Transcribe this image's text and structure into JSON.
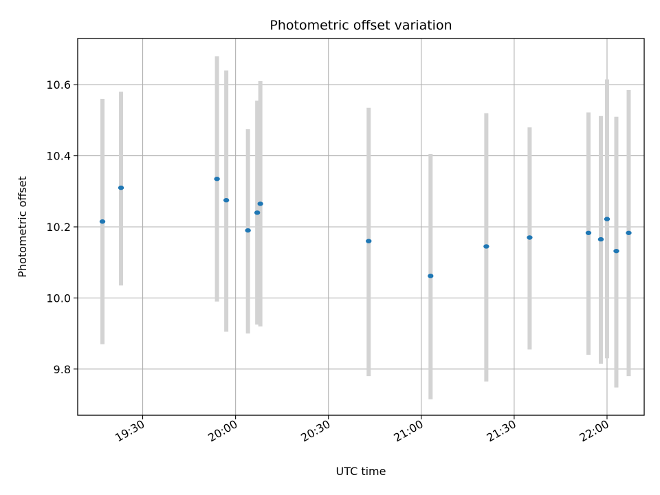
{
  "chart_data": {
    "type": "scatter",
    "title": "Photometric offset variation",
    "xlabel": "UTC time",
    "ylabel": "Photometric offset",
    "x_axis": "time",
    "xlim": [
      "19:09",
      "22:12"
    ],
    "ylim": [
      9.67,
      10.73
    ],
    "xticks": [
      "19:30",
      "20:00",
      "20:30",
      "21:00",
      "21:30",
      "22:00"
    ],
    "yticks": [
      9.8,
      10.0,
      10.2,
      10.4,
      10.6
    ],
    "yticks_labels": [
      "9.8",
      "10.0",
      "10.2",
      "10.4",
      "10.6"
    ],
    "grid": true,
    "marker_color": "#1f77b4",
    "errorbar_color": "#d3d3d3",
    "points": [
      {
        "time": "19:17",
        "y": 10.215,
        "low": 9.87,
        "high": 10.56
      },
      {
        "time": "19:23",
        "y": 10.31,
        "low": 10.035,
        "high": 10.58
      },
      {
        "time": "19:54",
        "y": 10.335,
        "low": 9.99,
        "high": 10.68
      },
      {
        "time": "19:57",
        "y": 10.275,
        "low": 9.905,
        "high": 10.64
      },
      {
        "time": "20:04",
        "y": 10.19,
        "low": 9.9,
        "high": 10.475
      },
      {
        "time": "20:07",
        "y": 10.24,
        "low": 9.925,
        "high": 10.555
      },
      {
        "time": "20:08",
        "y": 10.265,
        "low": 9.92,
        "high": 10.61
      },
      {
        "time": "20:43",
        "y": 10.16,
        "low": 9.78,
        "high": 10.535
      },
      {
        "time": "21:03",
        "y": 10.062,
        "low": 9.715,
        "high": 10.405
      },
      {
        "time": "21:21",
        "y": 10.145,
        "low": 9.765,
        "high": 10.52
      },
      {
        "time": "21:35",
        "y": 10.17,
        "low": 9.855,
        "high": 10.48
      },
      {
        "time": "21:54",
        "y": 10.183,
        "low": 9.84,
        "high": 10.522
      },
      {
        "time": "21:58",
        "y": 10.165,
        "low": 9.815,
        "high": 10.512
      },
      {
        "time": "22:00",
        "y": 10.222,
        "low": 9.83,
        "high": 10.615
      },
      {
        "time": "22:03",
        "y": 10.132,
        "low": 9.748,
        "high": 10.51
      },
      {
        "time": "22:07",
        "y": 10.183,
        "low": 9.78,
        "high": 10.585
      }
    ]
  }
}
